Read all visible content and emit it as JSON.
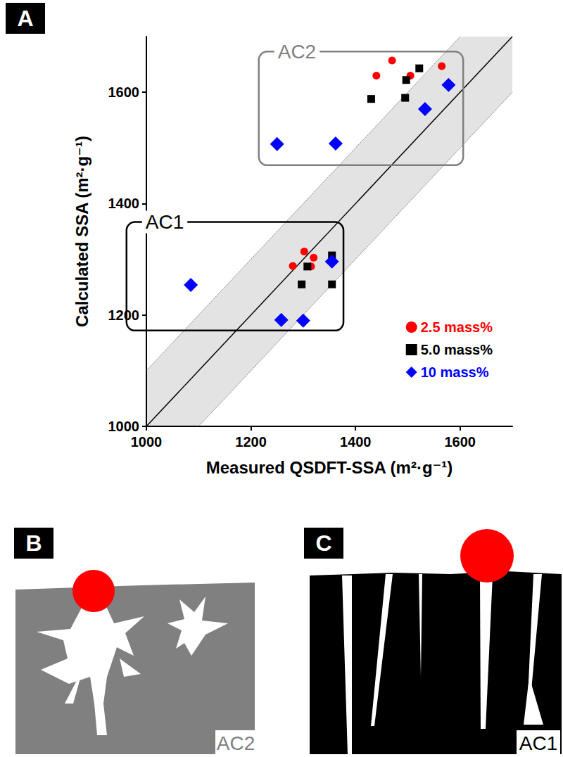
{
  "chart_data": {
    "type": "scatter",
    "x_label": "Measured QSDFT-SSA (m²·g⁻¹)",
    "y_label": "Calculated SSA (m²·g⁻¹)",
    "xlim": [
      1000,
      1700
    ],
    "ylim": [
      1000,
      1700
    ],
    "xticks": [
      1000,
      1200,
      1400,
      1600
    ],
    "yticks": [
      1000,
      1200,
      1400,
      1600
    ],
    "grid": false,
    "legend": "lower right",
    "tolerance_band": 100,
    "series": [
      {
        "name": "2.5 mass%",
        "color": "#ff0000",
        "marker": "circle",
        "x": [
          1440,
          1470,
          1505,
          1565,
          1280,
          1302,
          1315,
          1320
        ],
        "values": [
          1630,
          1657,
          1630,
          1647,
          1288,
          1314,
          1287,
          1303
        ]
      },
      {
        "name": "5.0 mass%",
        "color": "#000000",
        "marker": "square",
        "x": [
          1430,
          1495,
          1497,
          1522,
          1297,
          1308,
          1355,
          1355
        ],
        "values": [
          1588,
          1590,
          1622,
          1643,
          1255,
          1287,
          1307,
          1255
        ]
      },
      {
        "name": "10 mass%",
        "color": "#0000ff",
        "marker": "diamond",
        "x": [
          1250,
          1362,
          1533,
          1578,
          1085,
          1258,
          1300,
          1355
        ],
        "values": [
          1507,
          1508,
          1570,
          1613,
          1254,
          1191,
          1190,
          1296
        ]
      }
    ],
    "annotations": [
      {
        "text": "AC2",
        "color": "#808080",
        "xlim": [
          1215,
          1606
        ],
        "ylim": [
          1469,
          1673
        ]
      },
      {
        "text": "AC1",
        "color": "#000000",
        "xlim": [
          962,
          1377
        ],
        "ylim": [
          1172,
          1367
        ]
      }
    ]
  },
  "panel_letters": [
    "A",
    "B",
    "C"
  ],
  "diagrams": [
    {
      "label": "AC2"
    },
    {
      "label": "AC1"
    }
  ]
}
